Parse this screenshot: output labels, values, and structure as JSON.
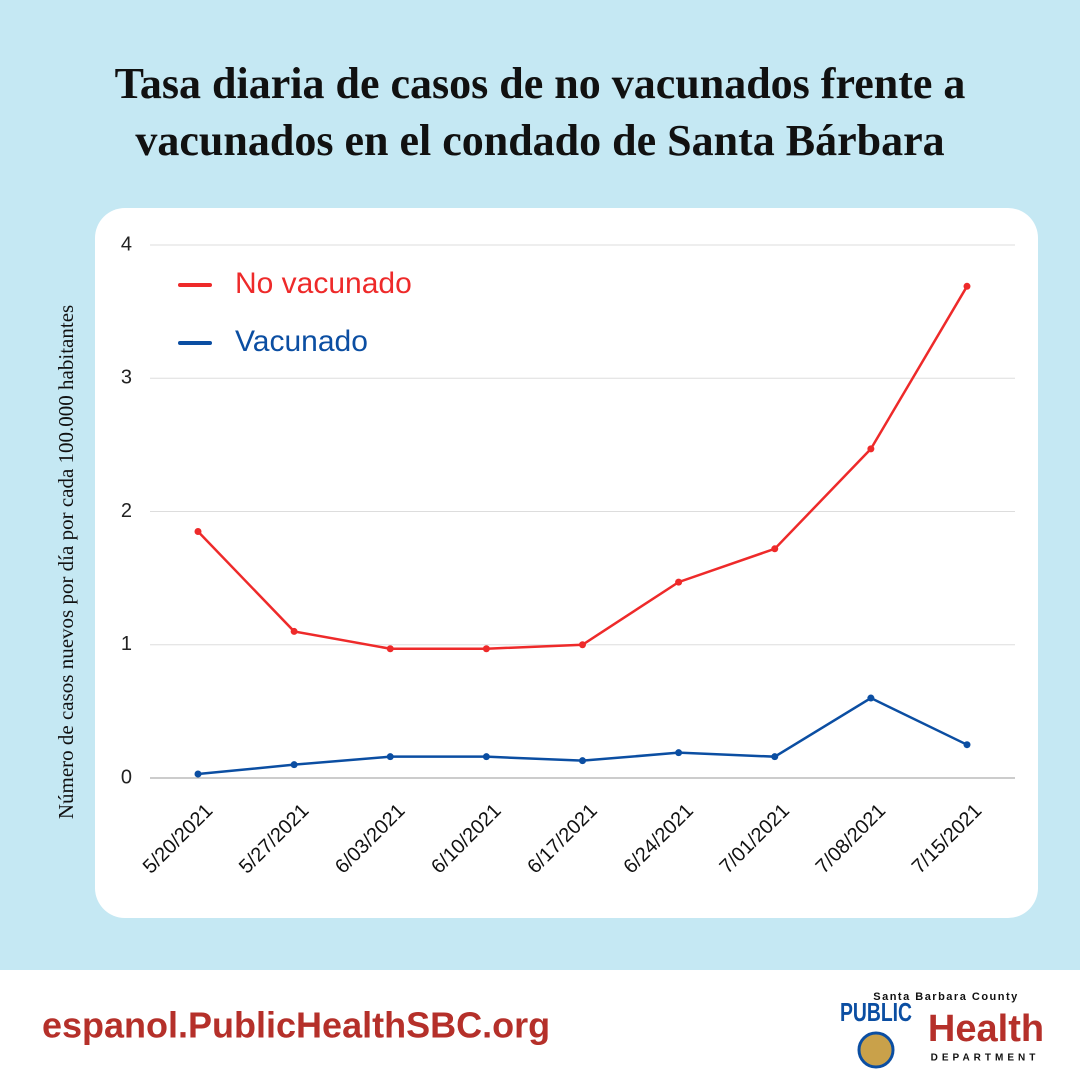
{
  "chart_data": {
    "type": "line",
    "title": [
      "Tasa diaria de casos de no vacunados frente a",
      "vacunados en el condado de Santa Bárbara"
    ],
    "y_label": "Número de casos nuevos por día por cada 100.000 habitantes",
    "categories": [
      "5/20/2021",
      "5/27/2021",
      "6/03/2021",
      "6/10/2021",
      "6/17/2021",
      "6/24/2021",
      "7/01/2021",
      "7/08/2021",
      "7/15/2021"
    ],
    "series": [
      {
        "name": "No vacunado",
        "color": "#ee2a2a",
        "values": [
          1.85,
          1.1,
          0.97,
          0.97,
          1.0,
          1.47,
          1.72,
          2.47,
          3.69
        ]
      },
      {
        "name": "Vacunado",
        "color": "#0b4ea2",
        "values": [
          0.03,
          0.1,
          0.16,
          0.16,
          0.13,
          0.19,
          0.16,
          0.6,
          0.25
        ]
      }
    ],
    "ylim": [
      0,
      4
    ],
    "yticks": [
      0,
      1,
      2,
      3,
      4
    ],
    "grid": true,
    "legend": "upper left"
  },
  "footer": {
    "url": "espanol.PublicHealthSBC.org",
    "logo": {
      "county": "Santa Barbara County",
      "public": "PUBLIC",
      "health": "Health",
      "department": "DEPARTMENT"
    }
  }
}
